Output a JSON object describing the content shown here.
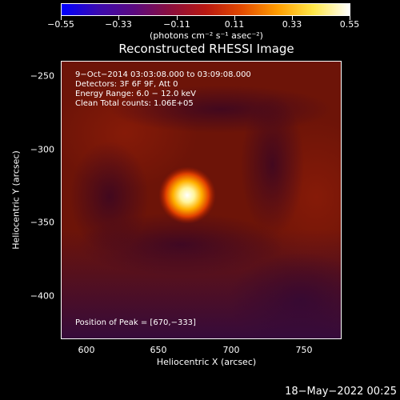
{
  "colorbar": {
    "tick_labels": [
      "−0.55",
      "−0.33",
      "−0.11",
      "0.11",
      "0.33",
      "0.55"
    ],
    "units": "(photons cm⁻² s⁻¹ asec⁻²)",
    "colors": [
      "#0000ff",
      "#3a0ab0",
      "#5a0a80",
      "#8a0f3e",
      "#b81812",
      "#e24a00",
      "#ff9d00",
      "#ffe84a",
      "#ffffff"
    ]
  },
  "plot": {
    "title": "Reconstructed RHESSI Image",
    "info_time": "9−Oct−2014 03:03:08.000 to 03:09:08.000",
    "info_detectors": "Detectors: 3F 6F 9F, Att 0",
    "info_energy": "Energy Range: 6.0 − 12.0 keV",
    "info_clean": "Clean    Total counts: 1.06E+05",
    "peak_text": "Position of Peak = [670,−333]",
    "xlabel": "Heliocentric X (arcsec)",
    "ylabel": "Heliocentric Y (arcsec)",
    "x_ticks": [
      "600",
      "650",
      "700",
      "750"
    ],
    "y_ticks": [
      "−250",
      "−300",
      "−350",
      "−400"
    ],
    "background_color": "#6d1408",
    "peak_color": "#ffffff"
  },
  "chart_data": {
    "type": "heatmap",
    "title": "Reconstructed RHESSI Image",
    "xlabel": "Heliocentric X (arcsec)",
    "ylabel": "Heliocentric Y (arcsec)",
    "xlim": [
      582,
      775
    ],
    "ylim": [
      -429,
      -239
    ],
    "colorbar_range": [
      -0.55,
      0.55
    ],
    "peak_position": [
      670,
      -333
    ]
  },
  "footer": {
    "date": "18−May−2022 00:25"
  }
}
